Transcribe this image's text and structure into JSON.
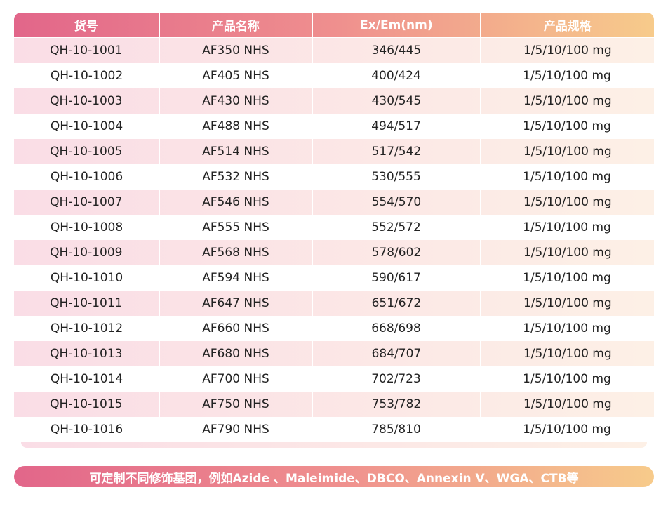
{
  "table": {
    "headers": [
      "货号",
      "产品名称",
      "Ex/Em(nm)",
      "产品规格"
    ],
    "rows": [
      [
        "QH-10-1001",
        "AF350 NHS",
        "346/445",
        "1/5/10/100 mg"
      ],
      [
        "QH-10-1002",
        "AF405 NHS",
        "400/424",
        "1/5/10/100 mg"
      ],
      [
        "QH-10-1003",
        "AF430 NHS",
        "430/545",
        "1/5/10/100 mg"
      ],
      [
        "QH-10-1004",
        "AF488 NHS",
        "494/517",
        "1/5/10/100 mg"
      ],
      [
        "QH-10-1005",
        "AF514 NHS",
        "517/542",
        "1/5/10/100 mg"
      ],
      [
        "QH-10-1006",
        "AF532 NHS",
        "530/555",
        "1/5/10/100 mg"
      ],
      [
        "QH-10-1007",
        "AF546 NHS",
        "554/570",
        "1/5/10/100 mg"
      ],
      [
        "QH-10-1008",
        "AF555 NHS",
        "552/572",
        "1/5/10/100 mg"
      ],
      [
        "QH-10-1009",
        "AF568 NHS",
        "578/602",
        "1/5/10/100 mg"
      ],
      [
        "QH-10-1010",
        "AF594 NHS",
        "590/617",
        "1/5/10/100 mg"
      ],
      [
        "QH-10-1011",
        "AF647 NHS",
        "651/672",
        "1/5/10/100 mg"
      ],
      [
        "QH-10-1012",
        "AF660 NHS",
        "668/698",
        "1/5/10/100 mg"
      ],
      [
        "QH-10-1013",
        "AF680 NHS",
        "684/707",
        "1/5/10/100 mg"
      ],
      [
        "QH-10-1014",
        "AF700 NHS",
        "702/723",
        "1/5/10/100 mg"
      ],
      [
        "QH-10-1015",
        "AF750 NHS",
        "753/782",
        "1/5/10/100 mg"
      ],
      [
        "QH-10-1016",
        "AF790 NHS",
        "785/810",
        "1/5/10/100 mg"
      ]
    ]
  },
  "footer": "可定制不同修饰基团，例如Azide 、Maleimide、DBCO、Annexin V、WGA、CTB等"
}
